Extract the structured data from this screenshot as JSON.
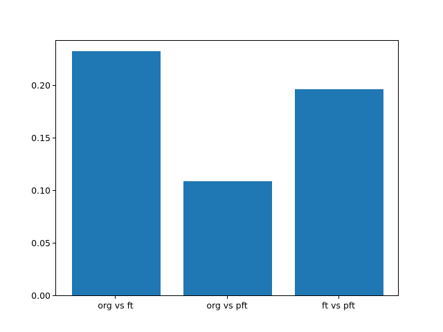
{
  "chart_data": {
    "type": "bar",
    "title": "",
    "xlabel": "",
    "ylabel": "",
    "categories": [
      "org vs ft",
      "org vs pft",
      "ft vs pft"
    ],
    "values": [
      0.232,
      0.108,
      0.196
    ],
    "yticks": [
      0.0,
      0.05,
      0.1,
      0.15,
      0.2
    ],
    "ytick_labels": [
      "0.00",
      "0.05",
      "0.10",
      "0.15",
      "0.20"
    ],
    "ylim": [
      0,
      0.2436
    ],
    "xlim": [
      -0.54,
      2.54
    ],
    "bar_width_units": 0.8,
    "bar_color": "#1f77b4",
    "spine_color": "#000000",
    "text_color": "#000000",
    "background_color": "#ffffff",
    "grid": false,
    "legend": null
  }
}
